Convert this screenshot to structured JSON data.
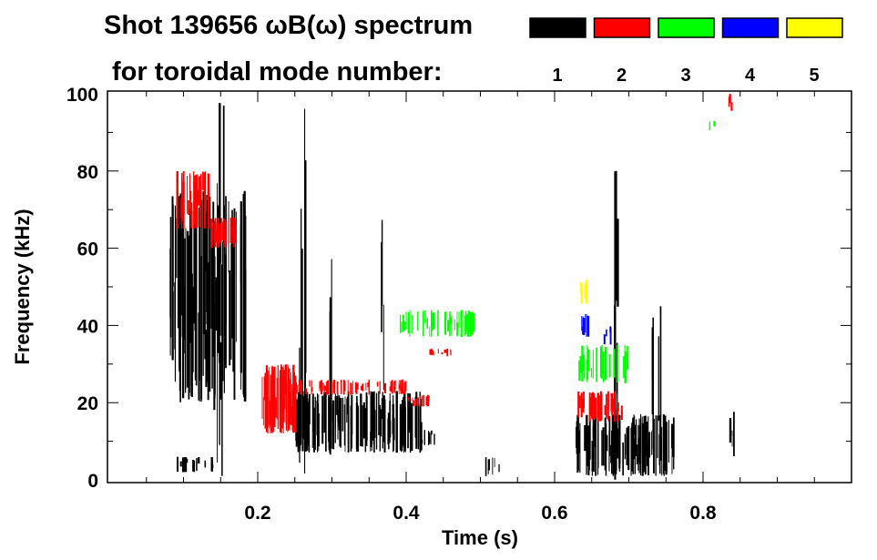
{
  "chart_data": {
    "type": "heatmap",
    "title": "Shot 139656 ωB(ω) spectrum",
    "subtitle": "for toroidal mode number:",
    "xlabel": "Time (s)",
    "ylabel": "Frequency (kHz)",
    "xlim": [
      0,
      1.0
    ],
    "ylim": [
      0,
      100
    ],
    "xticks": [
      0.2,
      0.4,
      0.6,
      0.8
    ],
    "xtick_labels": [
      "0.2",
      "0.4",
      "0.6",
      "0.8"
    ],
    "yticks": [
      0,
      20,
      40,
      60,
      80,
      100
    ],
    "ytick_labels": [
      "0",
      "20",
      "40",
      "60",
      "80",
      "100"
    ],
    "legend": [
      {
        "mode": "1",
        "color": "#000000"
      },
      {
        "mode": "2",
        "color": "#ff0000"
      },
      {
        "mode": "3",
        "color": "#00ff00"
      },
      {
        "mode": "4",
        "color": "#0000ff"
      },
      {
        "mode": "5",
        "color": "#ffff00"
      }
    ],
    "legend_placement": "top-right",
    "features": [
      {
        "mode": 1,
        "t": [
          0.08,
          0.185
        ],
        "f": [
          20,
          75
        ],
        "density": 90
      },
      {
        "mode": 1,
        "t": [
          0.09,
          0.14
        ],
        "f": [
          2,
          6
        ],
        "density": 20
      },
      {
        "mode": 1,
        "t": [
          0.25,
          0.42
        ],
        "f": [
          7,
          23
        ],
        "density": 140
      },
      {
        "mode": 1,
        "t": [
          0.42,
          0.44
        ],
        "f": [
          9,
          13
        ],
        "density": 8
      },
      {
        "mode": 1,
        "t": [
          0.625,
          0.76
        ],
        "f": [
          1,
          17
        ],
        "density": 110
      },
      {
        "mode": 1,
        "t": [
          0.255,
          0.265
        ],
        "f": [
          0,
          97
        ],
        "density": 6
      },
      {
        "mode": 1,
        "t": [
          0.14,
          0.155
        ],
        "f": [
          0,
          100
        ],
        "density": 6
      },
      {
        "mode": 1,
        "t": [
          0.675,
          0.685
        ],
        "f": [
          0,
          80
        ],
        "density": 5
      },
      {
        "mode": 1,
        "t": [
          0.29,
          0.3
        ],
        "f": [
          0,
          58
        ],
        "density": 3
      },
      {
        "mode": 1,
        "t": [
          0.36,
          0.37
        ],
        "f": [
          20,
          70
        ],
        "density": 3
      },
      {
        "mode": 1,
        "t": [
          0.5,
          0.53
        ],
        "f": [
          1,
          6
        ],
        "density": 6
      },
      {
        "mode": 1,
        "t": [
          0.73,
          0.75
        ],
        "f": [
          5,
          45
        ],
        "density": 5
      },
      {
        "mode": 1,
        "t": [
          0.835,
          0.845
        ],
        "f": [
          5,
          18
        ],
        "density": 4
      },
      {
        "mode": 2,
        "t": [
          0.09,
          0.135
        ],
        "f": [
          65,
          80
        ],
        "density": 40
      },
      {
        "mode": 2,
        "t": [
          0.135,
          0.17
        ],
        "f": [
          60,
          68
        ],
        "density": 30
      },
      {
        "mode": 2,
        "t": [
          0.205,
          0.25
        ],
        "f": [
          12,
          30
        ],
        "density": 70
      },
      {
        "mode": 2,
        "t": [
          0.25,
          0.4
        ],
        "f": [
          22,
          26
        ],
        "density": 60
      },
      {
        "mode": 2,
        "t": [
          0.4,
          0.43
        ],
        "f": [
          19,
          22
        ],
        "density": 15
      },
      {
        "mode": 2,
        "t": [
          0.43,
          0.46
        ],
        "f": [
          32,
          34
        ],
        "density": 12
      },
      {
        "mode": 2,
        "t": [
          0.63,
          0.69
        ],
        "f": [
          15,
          23
        ],
        "density": 40
      },
      {
        "mode": 2,
        "t": [
          0.83,
          0.84
        ],
        "f": [
          95,
          100
        ],
        "density": 3
      },
      {
        "mode": 3,
        "t": [
          0.39,
          0.49
        ],
        "f": [
          37,
          44
        ],
        "density": 45
      },
      {
        "mode": 3,
        "t": [
          0.63,
          0.7
        ],
        "f": [
          25,
          35
        ],
        "density": 30
      },
      {
        "mode": 3,
        "t": [
          0.805,
          0.815
        ],
        "f": [
          90,
          93
        ],
        "density": 3
      },
      {
        "mode": 4,
        "t": [
          0.635,
          0.645
        ],
        "f": [
          37,
          43
        ],
        "density": 8
      },
      {
        "mode": 4,
        "t": [
          0.665,
          0.675
        ],
        "f": [
          35,
          40
        ],
        "density": 4
      },
      {
        "mode": 5,
        "t": [
          0.632,
          0.642
        ],
        "f": [
          45,
          52
        ],
        "density": 6
      }
    ]
  }
}
